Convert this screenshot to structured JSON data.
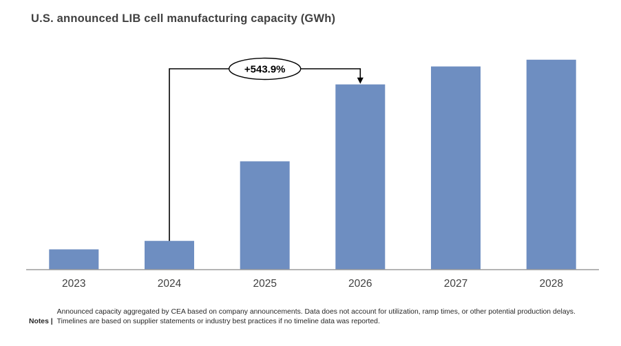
{
  "title": "U.S. announced LIB cell manufacturing capacity (GWh)",
  "chart_data": {
    "type": "bar",
    "title": "U.S. announced LIB cell manufacturing capacity (GWh)",
    "categories": [
      "2023",
      "2024",
      "2025",
      "2026",
      "2027",
      "2028"
    ],
    "values": [
      60,
      85,
      320,
      547,
      600,
      620
    ],
    "xlabel": "",
    "ylabel": "",
    "ylim": [
      0,
      650
    ],
    "y_axis_visible": false,
    "grid": false,
    "legend": false,
    "bar_color": "#6E8EC1",
    "axis_color": "#9C9C9C",
    "annotation": {
      "label": "+543.9%",
      "from_category": "2024",
      "to_category": "2026",
      "style": "bracket-arrow-with-ellipse",
      "bubble_fill": "#FFFFFF",
      "line_color": "#000000"
    }
  },
  "notes": {
    "label": "Notes |",
    "line1": "Announced capacity aggregated by CEA based on company announcements. Data does not account for utilization, ramp times, or other potential production delays.",
    "line2": "Timelines are based on supplier statements or industry best practices if no timeline data was reported."
  }
}
